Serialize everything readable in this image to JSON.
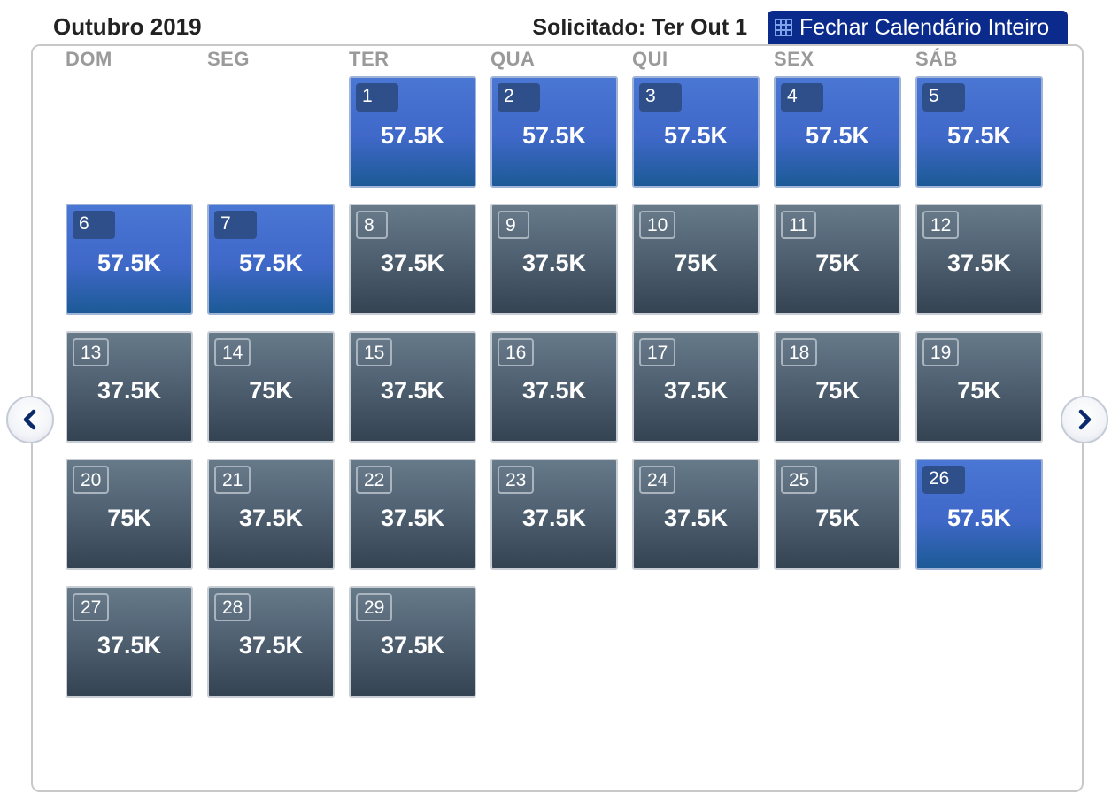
{
  "header": {
    "month_title": "Outubro 2019",
    "requested": "Solicitado: Ter Out 1",
    "close_button": "Fechar Calendário Inteiro"
  },
  "weekdays": [
    "DOM",
    "SEG",
    "TER",
    "QUA",
    "QUI",
    "SEX",
    "SÁB"
  ],
  "colors": {
    "blue_day": "#3f68c8",
    "gray_day": "#4e5f70",
    "button": "#0a2a8c"
  },
  "days": [
    {
      "num": "1",
      "price": "57.5K",
      "style": "blue"
    },
    {
      "num": "2",
      "price": "57.5K",
      "style": "blue"
    },
    {
      "num": "3",
      "price": "57.5K",
      "style": "blue"
    },
    {
      "num": "4",
      "price": "57.5K",
      "style": "blue"
    },
    {
      "num": "5",
      "price": "57.5K",
      "style": "blue"
    },
    {
      "num": "6",
      "price": "57.5K",
      "style": "blue"
    },
    {
      "num": "7",
      "price": "57.5K",
      "style": "blue"
    },
    {
      "num": "8",
      "price": "37.5K",
      "style": "gray"
    },
    {
      "num": "9",
      "price": "37.5K",
      "style": "gray"
    },
    {
      "num": "10",
      "price": "75K",
      "style": "gray"
    },
    {
      "num": "11",
      "price": "75K",
      "style": "gray"
    },
    {
      "num": "12",
      "price": "37.5K",
      "style": "gray"
    },
    {
      "num": "13",
      "price": "37.5K",
      "style": "gray"
    },
    {
      "num": "14",
      "price": "75K",
      "style": "gray"
    },
    {
      "num": "15",
      "price": "37.5K",
      "style": "gray"
    },
    {
      "num": "16",
      "price": "37.5K",
      "style": "gray"
    },
    {
      "num": "17",
      "price": "37.5K",
      "style": "gray"
    },
    {
      "num": "18",
      "price": "75K",
      "style": "gray"
    },
    {
      "num": "19",
      "price": "75K",
      "style": "gray"
    },
    {
      "num": "20",
      "price": "75K",
      "style": "gray"
    },
    {
      "num": "21",
      "price": "37.5K",
      "style": "gray"
    },
    {
      "num": "22",
      "price": "37.5K",
      "style": "gray"
    },
    {
      "num": "23",
      "price": "37.5K",
      "style": "gray"
    },
    {
      "num": "24",
      "price": "37.5K",
      "style": "gray"
    },
    {
      "num": "25",
      "price": "75K",
      "style": "gray"
    },
    {
      "num": "26",
      "price": "57.5K",
      "style": "blue"
    },
    {
      "num": "27",
      "price": "37.5K",
      "style": "gray"
    },
    {
      "num": "28",
      "price": "37.5K",
      "style": "gray"
    },
    {
      "num": "29",
      "price": "37.5K",
      "style": "gray"
    }
  ],
  "nav": {
    "prev_icon": "chevron-left-icon",
    "next_icon": "chevron-right-icon"
  }
}
